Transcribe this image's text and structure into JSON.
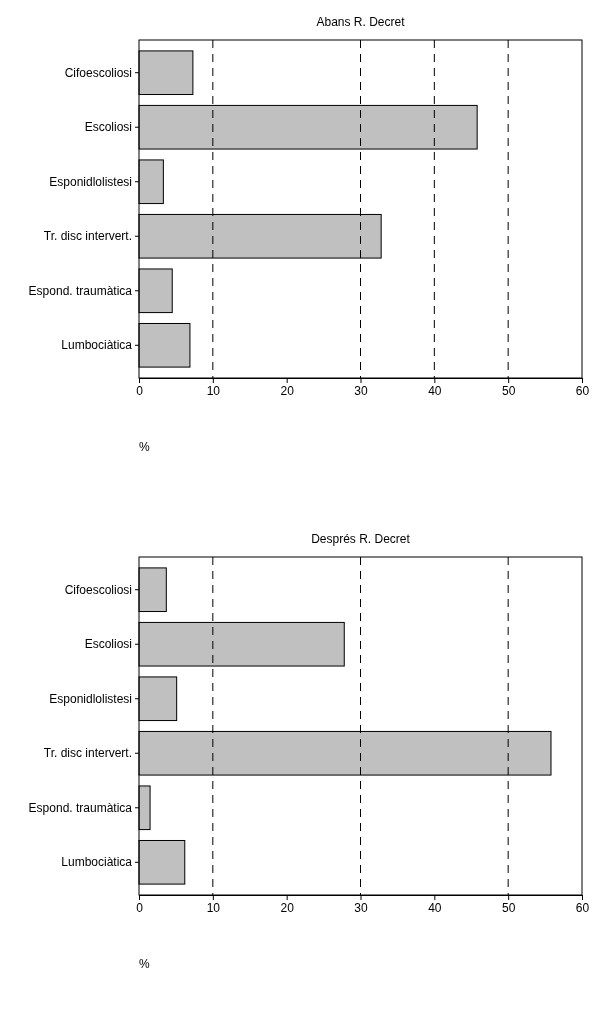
{
  "chart_data": [
    {
      "type": "bar",
      "orientation": "horizontal",
      "title": "Abans R. Decret",
      "xlabel": "%",
      "categories": [
        "Cifoescoliosi",
        "Escoliosi",
        "Esponidlolistesi",
        "Tr. disc intervert.",
        "Espond. traumàtica",
        "Lumbociàtica"
      ],
      "values": [
        7.3,
        45.8,
        3.3,
        32.8,
        4.5,
        6.9
      ],
      "color": "#c0c0c0",
      "xlim": [
        0,
        60
      ],
      "xticks": [
        0,
        10,
        20,
        30,
        40,
        50,
        60
      ],
      "grid": false,
      "ref_lines": [
        {
          "axis": "x",
          "value": 10,
          "line_style": "dashed",
          "color": "#000000"
        },
        {
          "axis": "x",
          "value": 30,
          "line_style": "dashed",
          "color": "#000000"
        },
        {
          "axis": "x",
          "value": 40,
          "line_style": "dashed",
          "color": "#000000"
        },
        {
          "axis": "x",
          "value": 50,
          "line_style": "dashed",
          "color": "#000000"
        }
      ]
    },
    {
      "type": "bar",
      "orientation": "horizontal",
      "title": "Després R. Decret",
      "xlabel": "%",
      "categories": [
        "Cifoescoliosi",
        "Escoliosi",
        "Esponidlolistesi",
        "Tr. disc intervert.",
        "Espond. traumàtica",
        "Lumbociàtica"
      ],
      "values": [
        3.7,
        27.8,
        5.1,
        55.8,
        1.5,
        6.2
      ],
      "color": "#c0c0c0",
      "xlim": [
        0,
        60
      ],
      "xticks": [
        0,
        10,
        20,
        30,
        40,
        50,
        60
      ],
      "grid": false,
      "ref_lines": [
        {
          "axis": "x",
          "value": 10,
          "line_style": "dashed",
          "color": "#000000"
        },
        {
          "axis": "x",
          "value": 30,
          "line_style": "dashed",
          "color": "#000000"
        },
        {
          "axis": "x",
          "value": 50,
          "line_style": "dashed",
          "color": "#000000"
        }
      ]
    }
  ]
}
